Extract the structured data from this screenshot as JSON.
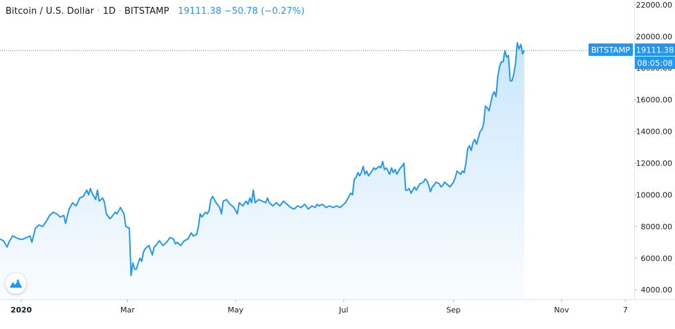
{
  "legend": {
    "symbol": "Bitcoin / U.S. Dollar",
    "interval": "1D",
    "exchange": "BITSTAMP",
    "last": "19111.38",
    "change": "−50.78",
    "change_pct": "(−0.27%)",
    "separator": "·"
  },
  "price_label": {
    "exchange": "BITSTAMP",
    "price": "19111.38",
    "countdown": "08:05:08"
  },
  "colors": {
    "line": "#2196f3",
    "label_bg": "#2196f3",
    "axis_text": "#131722",
    "axis_line": "#e0e3eb"
  },
  "icon": "tradingview-logo-icon",
  "chart_data": {
    "type": "area",
    "y_ticks": [
      "22000.00",
      "20000.00",
      "18000.00",
      "16000.00",
      "14000.00",
      "12000.00",
      "10000.00",
      "8000.00",
      "6000.00",
      "4000.00"
    ],
    "x_ticks": [
      {
        "label": "2020",
        "t": 0
      },
      {
        "label": "Mar",
        "t": 60
      },
      {
        "label": "May",
        "t": 121
      },
      {
        "label": "Jul",
        "t": 182
      },
      {
        "label": "Sep",
        "t": 244
      },
      {
        "label": "Nov",
        "t": 305
      },
      {
        "label": "7",
        "t": 341
      }
    ],
    "ylim": [
      3400,
      22300
    ],
    "xlim": [
      -12,
      346
    ],
    "last_value": 19111.38,
    "points": [
      [
        -12,
        7200
      ],
      [
        -10,
        7100
      ],
      [
        -8,
        6700
      ],
      [
        -7,
        7000
      ],
      [
        -5,
        7400
      ],
      [
        -3,
        7300
      ],
      [
        -1,
        7200
      ],
      [
        1,
        7200
      ],
      [
        3,
        7300
      ],
      [
        5,
        7400
      ],
      [
        6,
        7000
      ],
      [
        8,
        7900
      ],
      [
        10,
        8100
      ],
      [
        12,
        8000
      ],
      [
        14,
        8300
      ],
      [
        16,
        8700
      ],
      [
        18,
        8900
      ],
      [
        20,
        8800
      ],
      [
        22,
        8600
      ],
      [
        24,
        8700
      ],
      [
        25,
        8200
      ],
      [
        27,
        9100
      ],
      [
        29,
        9500
      ],
      [
        31,
        9300
      ],
      [
        33,
        9800
      ],
      [
        35,
        9900
      ],
      [
        37,
        10300
      ],
      [
        38,
        10000
      ],
      [
        39,
        10400
      ],
      [
        40,
        10100
      ],
      [
        42,
        9700
      ],
      [
        43,
        10300
      ],
      [
        44,
        9600
      ],
      [
        46,
        9800
      ],
      [
        47,
        9500
      ],
      [
        48,
        8800
      ],
      [
        50,
        8500
      ],
      [
        51,
        8600
      ],
      [
        53,
        8900
      ],
      [
        54,
        8800
      ],
      [
        56,
        9200
      ],
      [
        58,
        8800
      ],
      [
        59,
        8000
      ],
      [
        61,
        7900
      ],
      [
        62,
        4900
      ],
      [
        63,
        5700
      ],
      [
        64,
        5300
      ],
      [
        65,
        5300
      ],
      [
        66,
        5700
      ],
      [
        67,
        6000
      ],
      [
        68,
        5800
      ],
      [
        69,
        6400
      ],
      [
        70,
        6600
      ],
      [
        72,
        6800
      ],
      [
        74,
        6200
      ],
      [
        75,
        6700
      ],
      [
        76,
        6800
      ],
      [
        78,
        7100
      ],
      [
        80,
        6800
      ],
      [
        82,
        7000
      ],
      [
        84,
        7300
      ],
      [
        86,
        7200
      ],
      [
        87,
        6900
      ],
      [
        88,
        7000
      ],
      [
        90,
        6800
      ],
      [
        92,
        7100
      ],
      [
        94,
        7200
      ],
      [
        96,
        7600
      ],
      [
        97,
        7400
      ],
      [
        99,
        7500
      ],
      [
        100,
        8000
      ],
      [
        101,
        8800
      ],
      [
        102,
        8600
      ],
      [
        104,
        8900
      ],
      [
        105,
        8800
      ],
      [
        106,
        9000
      ],
      [
        107,
        9700
      ],
      [
        108,
        9900
      ],
      [
        110,
        9500
      ],
      [
        112,
        9200
      ],
      [
        113,
        8800
      ],
      [
        114,
        9600
      ],
      [
        116,
        9700
      ],
      [
        117,
        9500
      ],
      [
        118,
        9400
      ],
      [
        120,
        9200
      ],
      [
        121,
        9000
      ],
      [
        122,
        8800
      ],
      [
        123,
        9500
      ],
      [
        125,
        9300
      ],
      [
        127,
        9600
      ],
      [
        128,
        9400
      ],
      [
        129,
        9800
      ],
      [
        130,
        9500
      ],
      [
        131,
        10300
      ],
      [
        132,
        9500
      ],
      [
        134,
        9700
      ],
      [
        136,
        9600
      ],
      [
        138,
        9500
      ],
      [
        139,
        9800
      ],
      [
        140,
        9500
      ],
      [
        142,
        9300
      ],
      [
        144,
        9500
      ],
      [
        146,
        9300
      ],
      [
        148,
        9600
      ],
      [
        150,
        9400
      ],
      [
        152,
        9200
      ],
      [
        154,
        9100
      ],
      [
        156,
        9300
      ],
      [
        158,
        9200
      ],
      [
        160,
        9400
      ],
      [
        162,
        9100
      ],
      [
        164,
        9300
      ],
      [
        166,
        9200
      ],
      [
        167,
        9400
      ],
      [
        168,
        9300
      ],
      [
        170,
        9400
      ],
      [
        172,
        9200
      ],
      [
        174,
        9300
      ],
      [
        176,
        9200
      ],
      [
        178,
        9300
      ],
      [
        180,
        9200
      ],
      [
        182,
        9400
      ],
      [
        183,
        9500
      ],
      [
        184,
        9700
      ],
      [
        186,
        10100
      ],
      [
        187,
        10000
      ],
      [
        188,
        11000
      ],
      [
        189,
        11100
      ],
      [
        190,
        11400
      ],
      [
        191,
        11200
      ],
      [
        192,
        11400
      ],
      [
        193,
        11800
      ],
      [
        194,
        11300
      ],
      [
        195,
        11500
      ],
      [
        196,
        11200
      ],
      [
        198,
        11500
      ],
      [
        199,
        11700
      ],
      [
        200,
        11600
      ],
      [
        202,
        11800
      ],
      [
        203,
        11700
      ],
      [
        204,
        12100
      ],
      [
        205,
        11600
      ],
      [
        206,
        11700
      ],
      [
        207,
        11500
      ],
      [
        208,
        11300
      ],
      [
        209,
        11700
      ],
      [
        210,
        11400
      ],
      [
        211,
        11600
      ],
      [
        212,
        11300
      ],
      [
        213,
        11500
      ],
      [
        214,
        11700
      ],
      [
        215,
        11800
      ],
      [
        216,
        12000
      ],
      [
        217,
        10300
      ],
      [
        218,
        10300
      ],
      [
        219,
        10400
      ],
      [
        220,
        10100
      ],
      [
        222,
        10500
      ],
      [
        223,
        10300
      ],
      [
        225,
        10700
      ],
      [
        227,
        10800
      ],
      [
        228,
        11000
      ],
      [
        229,
        10900
      ],
      [
        230,
        10600
      ],
      [
        231,
        10200
      ],
      [
        232,
        10500
      ],
      [
        233,
        10600
      ],
      [
        234,
        10800
      ],
      [
        236,
        10700
      ],
      [
        237,
        10500
      ],
      [
        238,
        10600
      ],
      [
        239,
        10800
      ],
      [
        240,
        10700
      ],
      [
        242,
        10500
      ],
      [
        244,
        10800
      ],
      [
        245,
        11100
      ],
      [
        246,
        11500
      ],
      [
        247,
        11400
      ],
      [
        248,
        11300
      ],
      [
        249,
        11500
      ],
      [
        250,
        11400
      ],
      [
        251,
        12000
      ],
      [
        252,
        12900
      ],
      [
        253,
        13100
      ],
      [
        254,
        12800
      ],
      [
        255,
        13300
      ],
      [
        256,
        13500
      ],
      [
        257,
        13200
      ],
      [
        258,
        13600
      ],
      [
        259,
        14000
      ],
      [
        260,
        14100
      ],
      [
        261,
        14500
      ],
      [
        262,
        15600
      ],
      [
        263,
        15500
      ],
      [
        264,
        15300
      ],
      [
        265,
        15800
      ],
      [
        266,
        16300
      ],
      [
        267,
        16500
      ],
      [
        268,
        16200
      ],
      [
        269,
        17500
      ],
      [
        270,
        18100
      ],
      [
        271,
        18400
      ],
      [
        272,
        18400
      ],
      [
        273,
        19100
      ],
      [
        274,
        18700
      ],
      [
        275,
        18800
      ],
      [
        276,
        17200
      ],
      [
        277,
        17200
      ],
      [
        278,
        17600
      ],
      [
        279,
        18300
      ],
      [
        280,
        19600
      ],
      [
        281,
        19200
      ],
      [
        282,
        19500
      ],
      [
        283,
        18900
      ],
      [
        284,
        19111
      ]
    ]
  }
}
